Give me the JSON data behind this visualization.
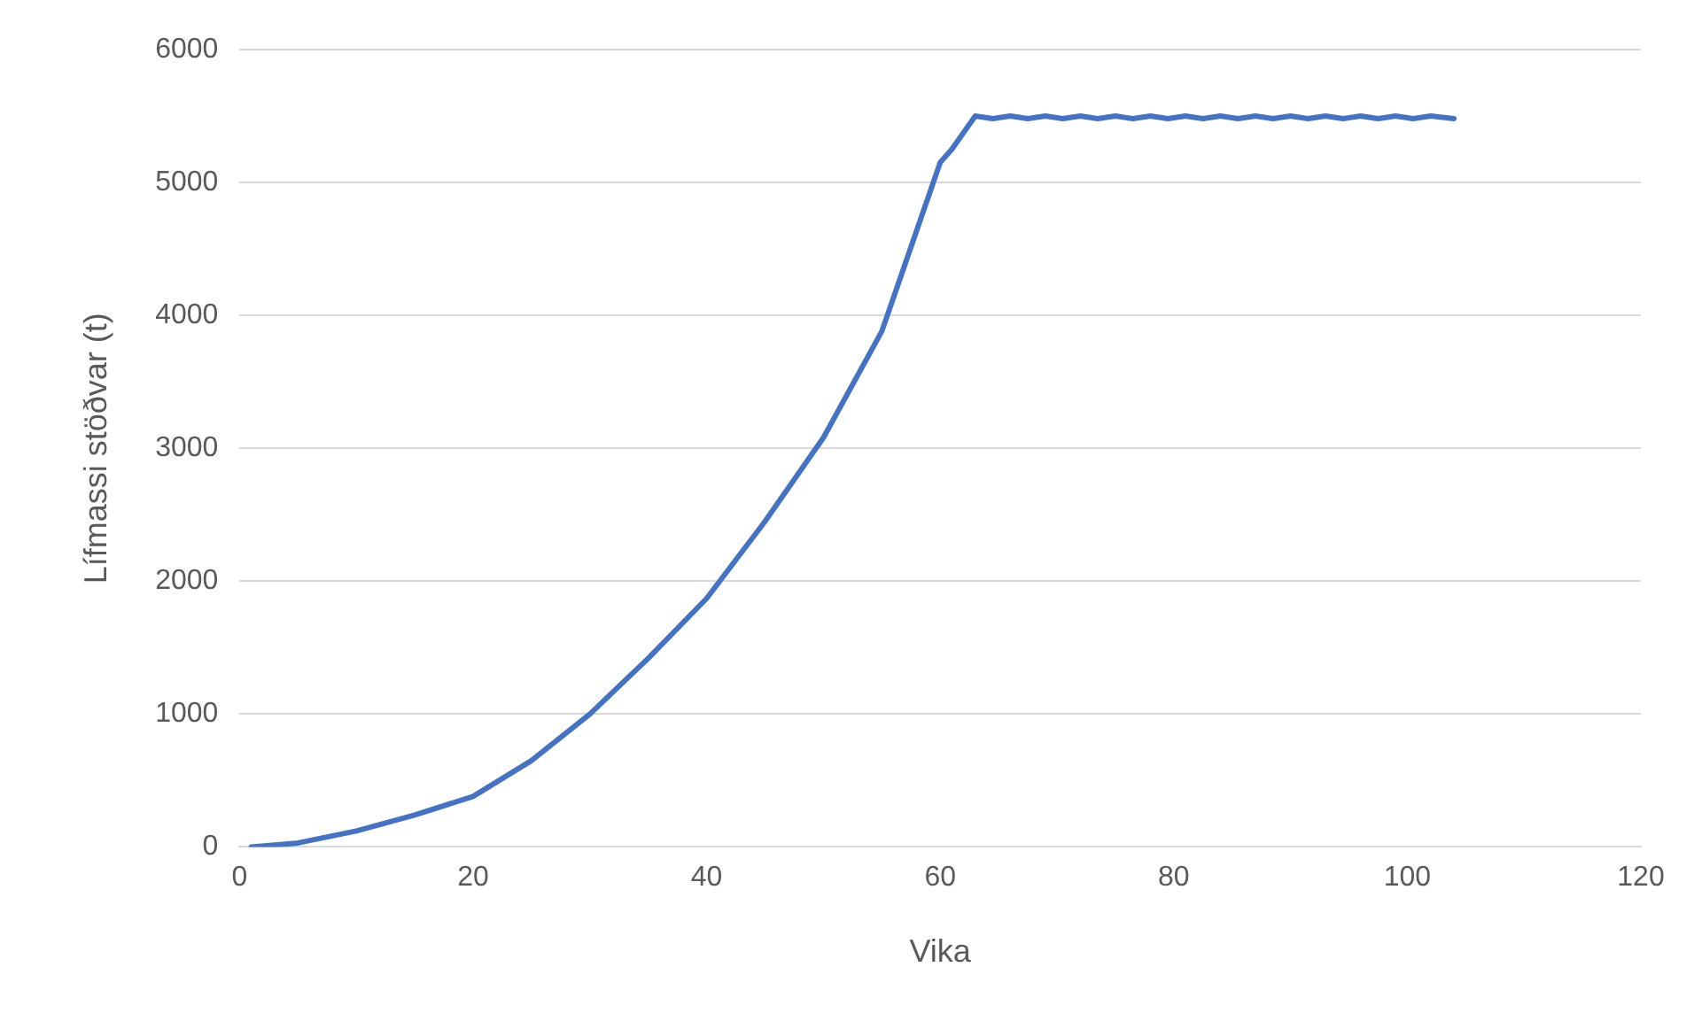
{
  "chart_data": {
    "type": "line",
    "xlabel": "Vika",
    "ylabel": "Lífmassi stöðvar (t)",
    "xlim": [
      0,
      120
    ],
    "xticks": [
      0,
      20,
      40,
      60,
      80,
      100,
      120
    ],
    "ylim": [
      0,
      6000
    ],
    "yticks": [
      0,
      1000,
      2000,
      3000,
      4000,
      5000,
      6000
    ],
    "grid": "y",
    "legend": false,
    "marker": "none",
    "line_style": "solid",
    "series": [
      {
        "color": "#4472c4",
        "x": [
          1,
          5,
          10,
          15,
          20,
          25,
          30,
          35,
          40,
          45,
          50,
          55,
          60,
          61,
          63,
          64.5,
          66,
          67.5,
          69,
          70.5,
          72,
          73.5,
          75,
          76.5,
          78,
          79.5,
          81,
          82.5,
          84,
          85.5,
          87,
          88.5,
          90,
          91.5,
          93,
          94.5,
          96,
          97.5,
          99,
          100.5,
          102,
          104
        ],
        "values": [
          0,
          30,
          120,
          240,
          380,
          650,
          1000,
          1420,
          1870,
          2450,
          3080,
          3880,
          5150,
          5250,
          5500,
          5480,
          5500,
          5480,
          5500,
          5480,
          5500,
          5480,
          5500,
          5480,
          5500,
          5480,
          5500,
          5480,
          5500,
          5480,
          5500,
          5480,
          5500,
          5480,
          5500,
          5480,
          5500,
          5480,
          5500,
          5480,
          5500,
          5480
        ]
      }
    ]
  }
}
